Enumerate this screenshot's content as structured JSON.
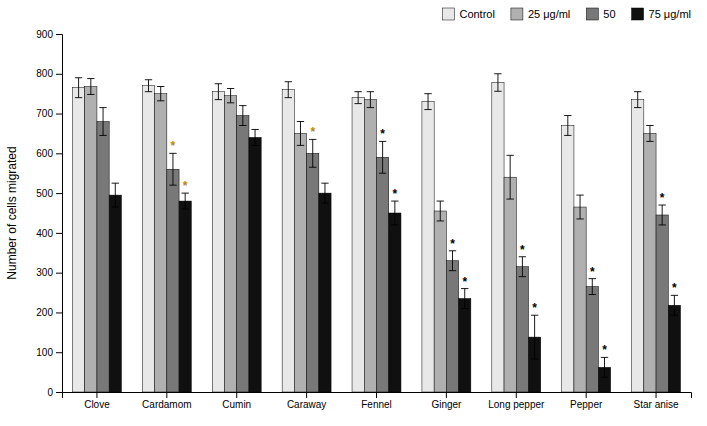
{
  "chart_data": {
    "type": "bar",
    "y_label": "Number of cells migrated",
    "categories": [
      "Clove",
      "Cardamom",
      "Cumin",
      "Caraway",
      "Fennel",
      "Ginger",
      "Long pepper",
      "Pepper",
      "Star anise"
    ],
    "series": [
      {
        "name": "Control",
        "color": "#e8e8e8",
        "values": [
          765,
          770,
          755,
          760,
          740,
          730,
          778,
          670,
          735
        ],
        "errors": [
          25,
          15,
          20,
          20,
          15,
          20,
          22,
          25,
          20
        ]
      },
      {
        "name": "25 μg/ml",
        "color": "#b0b0b0",
        "values": [
          768,
          750,
          745,
          650,
          735,
          455,
          540,
          465,
          650
        ],
        "errors": [
          20,
          18,
          18,
          30,
          20,
          25,
          55,
          30,
          20
        ]
      },
      {
        "name": "50",
        "color": "#787878",
        "values": [
          680,
          560,
          695,
          600,
          590,
          330,
          315,
          265,
          445
        ],
        "errors": [
          35,
          40,
          25,
          35,
          40,
          25,
          25,
          20,
          25
        ]
      },
      {
        "name": "75 μg/ml",
        "color": "#101010",
        "values": [
          495,
          480,
          640,
          500,
          450,
          235,
          138,
          62,
          218
        ],
        "errors": [
          30,
          20,
          20,
          25,
          30,
          25,
          55,
          25,
          25
        ]
      }
    ],
    "annotations": [
      {
        "text": "*",
        "series": "50",
        "category": "Cardamom",
        "color": "#b8860b"
      },
      {
        "text": "*",
        "series": "50",
        "category": "Caraway",
        "color": "#b8860b"
      },
      {
        "text": "*",
        "series": "50",
        "category": "Fennel",
        "color": "#000000"
      },
      {
        "text": "*",
        "series": "50",
        "category": "Ginger",
        "color": "#000000"
      },
      {
        "text": "*",
        "series": "50",
        "category": "Long pepper",
        "color": "#000000"
      },
      {
        "text": "*",
        "series": "50",
        "category": "Pepper",
        "color": "#000000"
      },
      {
        "text": "*",
        "series": "50",
        "category": "Star anise",
        "color": "#000000"
      },
      {
        "text": "*",
        "series": "75 μg/ml",
        "category": "Cardamom",
        "color": "#b8860b"
      },
      {
        "text": "*",
        "series": "75 μg/ml",
        "category": "Fennel",
        "color": "#000000"
      },
      {
        "text": "*",
        "series": "75 μg/ml",
        "category": "Ginger",
        "color": "#000000"
      },
      {
        "text": "*",
        "series": "75 μg/ml",
        "category": "Long pepper",
        "color": "#000000"
      },
      {
        "text": "*",
        "series": "75 μg/ml",
        "category": "Pepper",
        "color": "#000000"
      },
      {
        "text": "*",
        "series": "75 μg/ml",
        "category": "Star anise",
        "color": "#000000"
      }
    ],
    "ylim": [
      0,
      900
    ],
    "yticks": [
      0,
      100,
      200,
      300,
      400,
      500,
      600,
      700,
      800,
      900
    ],
    "grid": false,
    "legend": "upper right"
  }
}
